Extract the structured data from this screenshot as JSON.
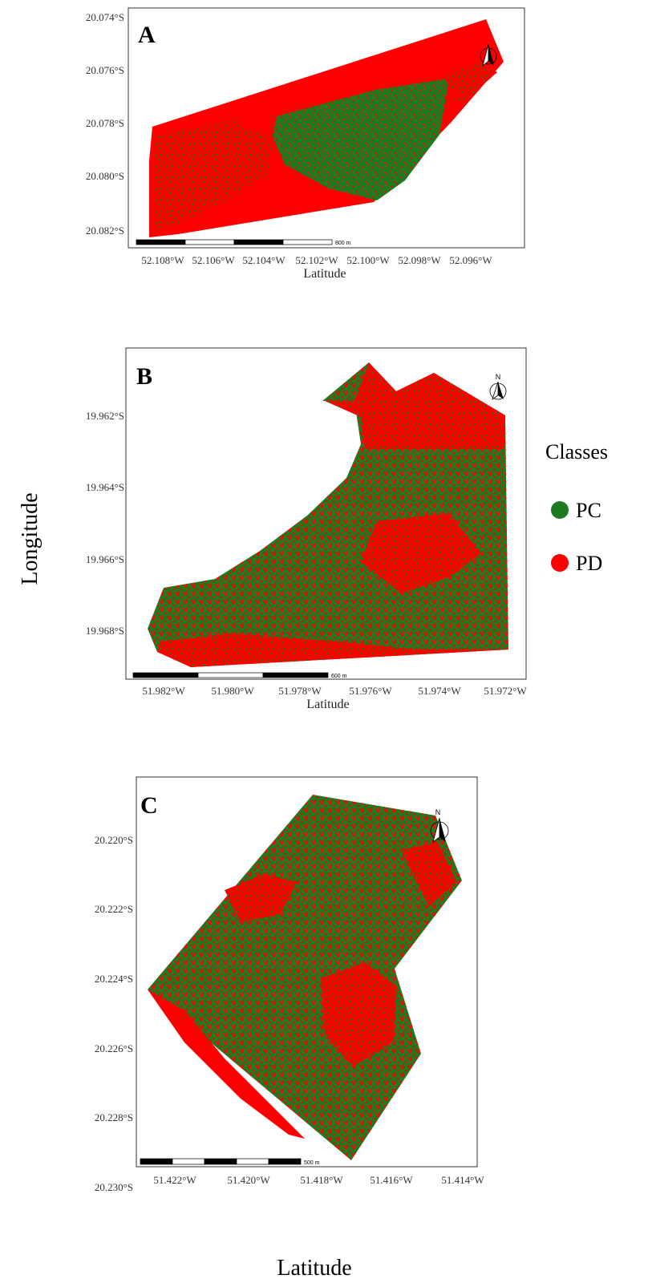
{
  "figure": {
    "y_axis_title": "Longitude",
    "x_axis_title": "Latitude"
  },
  "legend": {
    "title": "Classes",
    "items": [
      {
        "label": "PC",
        "color": "#1e7a1e"
      },
      {
        "label": "PD",
        "color": "#ff0000"
      }
    ]
  },
  "colors": {
    "pc": "#1e7a1e",
    "pd": "#ff0000"
  },
  "panels": [
    {
      "letter": "A",
      "y_ticks": [
        "20.074°S",
        "20.076°S",
        "20.078°S",
        "20.080°S",
        "20.082°S"
      ],
      "x_ticks": [
        "52.108°W",
        "52.106°W",
        "52.104°W",
        "52.102°W",
        "52.100°W",
        "52.098°W",
        "52.096°W"
      ],
      "x_title": "Latitude",
      "scale_label": "800 m",
      "north_label": ""
    },
    {
      "letter": "B",
      "y_ticks": [
        "19.962°S",
        "19.964°S",
        "19.966°S",
        "19.968°S"
      ],
      "x_ticks": [
        "51.982°W",
        "51.980°W",
        "51.978°W",
        "51.976°W",
        "51.974°W",
        "51.972°W"
      ],
      "x_title": "Latitude",
      "scale_label": "600 m",
      "north_label": "N"
    },
    {
      "letter": "C",
      "y_ticks": [
        "20.220°S",
        "20.222°S",
        "20.224°S",
        "20.226°S",
        "20.228°S",
        "20.230°S"
      ],
      "x_ticks": [
        "51.422°W",
        "51.420°W",
        "51.418°W",
        "51.416°W",
        "51.414°W"
      ],
      "x_title": "",
      "scale_label": "500 m",
      "north_label": "N"
    }
  ]
}
